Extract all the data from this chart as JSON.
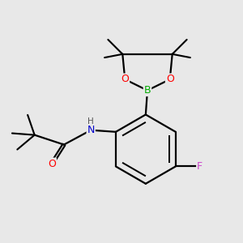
{
  "background_color": "#e8e8e8",
  "atom_colors": {
    "C": "#000000",
    "N": "#0000cc",
    "O": "#ff0000",
    "B": "#00aa00",
    "F": "#cc44cc",
    "H": "#555555"
  },
  "bond_color": "#000000",
  "bond_width": 1.6,
  "figsize": [
    3.0,
    3.0
  ],
  "dpi": 100
}
